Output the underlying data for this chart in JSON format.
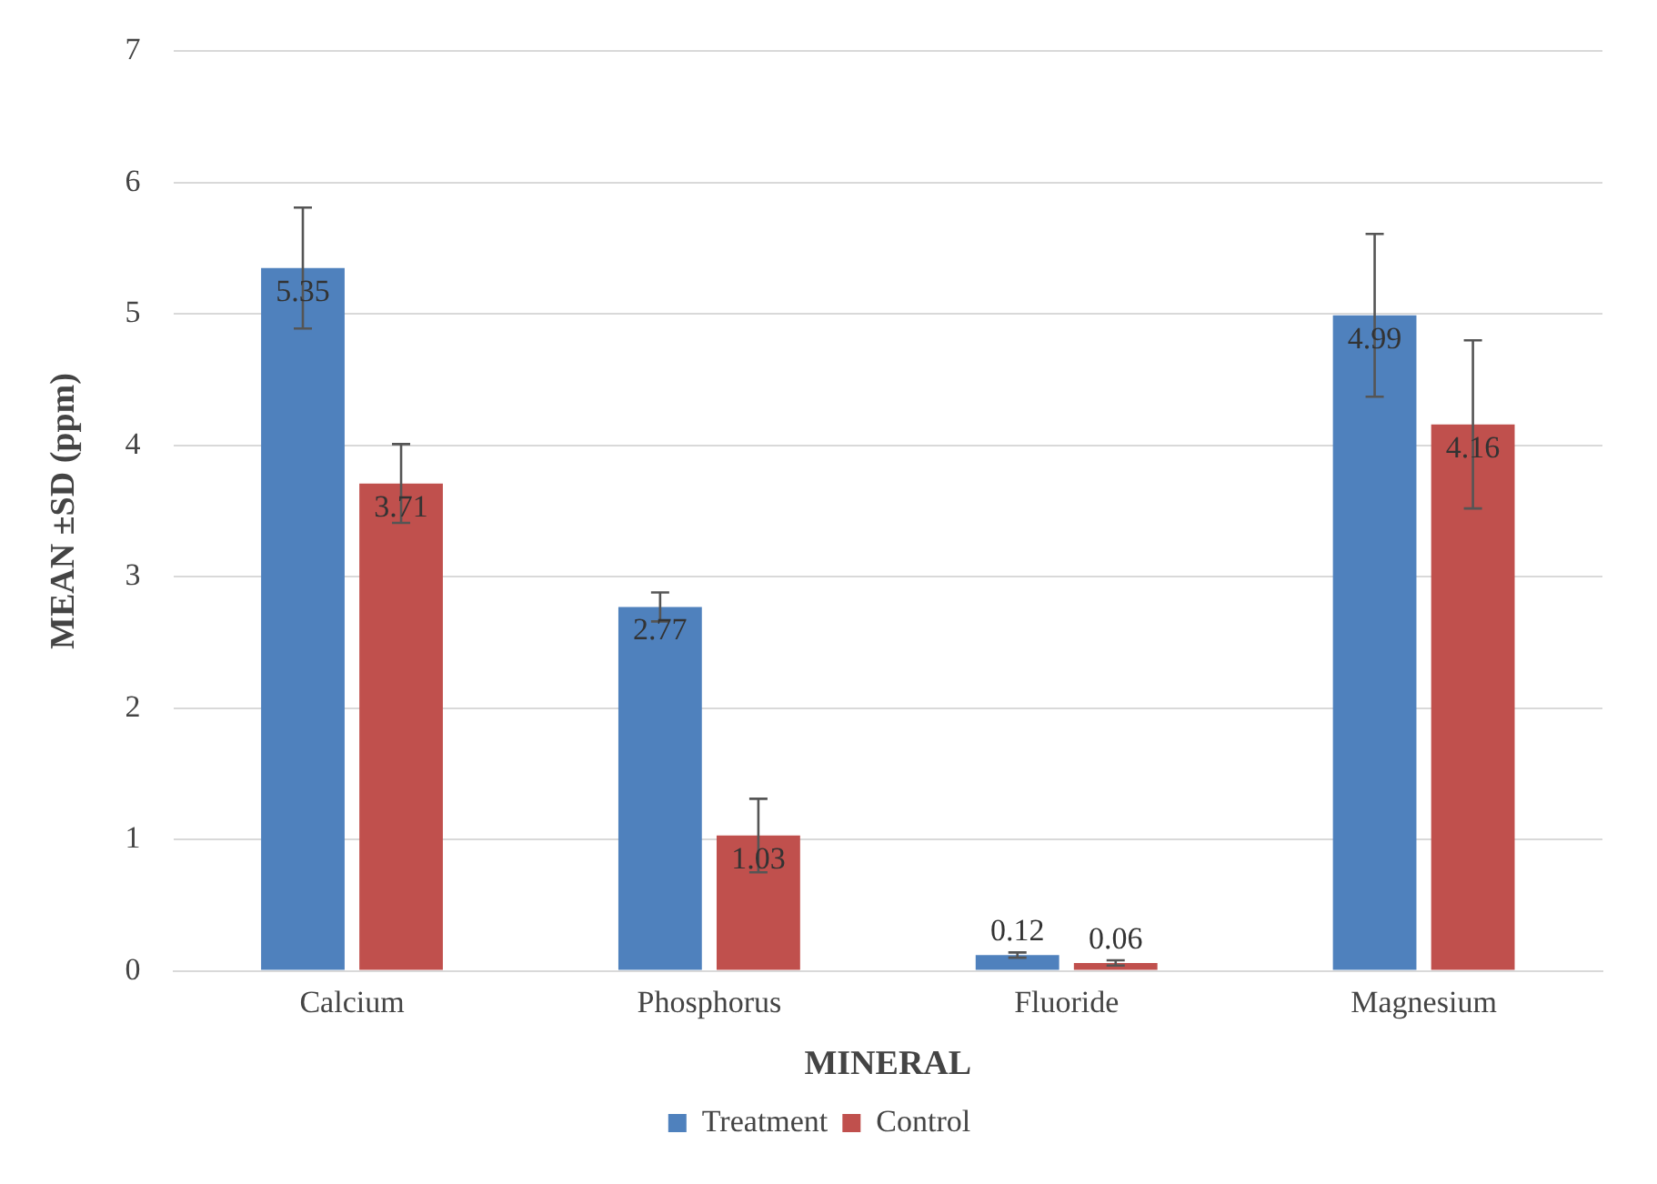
{
  "chart_data": {
    "type": "bar",
    "xlabel": "MINERAL",
    "ylabel": "MEAN ±SD (ppm)",
    "categories": [
      "Calcium",
      "Phosphorus",
      "Fluoride",
      "Magnesium"
    ],
    "series": [
      {
        "name": "Treatment",
        "color": "#4f81bd",
        "values": [
          5.35,
          2.77,
          0.12,
          4.99
        ],
        "errors": [
          0.46,
          0.11,
          0.02,
          0.62
        ]
      },
      {
        "name": "Control",
        "color": "#c0504d",
        "values": [
          3.71,
          1.03,
          0.06,
          4.16
        ],
        "errors": [
          0.3,
          0.28,
          0.02,
          0.64
        ]
      }
    ],
    "ylim": [
      0,
      7
    ],
    "yticks": [
      0,
      1,
      2,
      3,
      4,
      5,
      6,
      7
    ],
    "grid": "y",
    "legend": "bottom",
    "data_labels": true
  }
}
